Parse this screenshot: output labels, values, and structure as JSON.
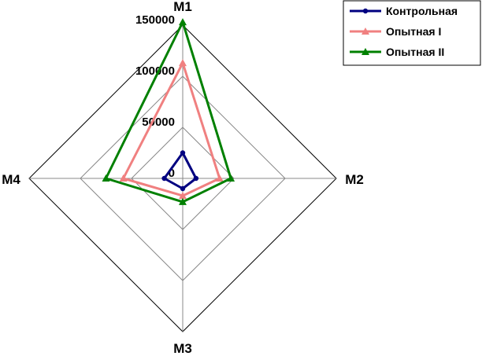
{
  "chart_data": {
    "type": "radar",
    "axes": [
      "M1",
      "M2",
      "M3",
      "M4"
    ],
    "radial_ticks": [
      "0",
      "50000",
      "100000",
      "150000"
    ],
    "rmax": 150000,
    "grid": true,
    "legend_position": "top-right",
    "series": [
      {
        "name": "Контрольная",
        "color": "#000080",
        "marker": "circle",
        "values": [
          25000,
          13000,
          10000,
          18000
        ]
      },
      {
        "name": "Опытная I",
        "color": "#f08080",
        "marker": "triangle",
        "values": [
          113000,
          36000,
          17000,
          58000
        ]
      },
      {
        "name": "Опытная II",
        "color": "#008000",
        "marker": "triangle",
        "values": [
          153000,
          47000,
          23000,
          75000
        ]
      }
    ]
  }
}
